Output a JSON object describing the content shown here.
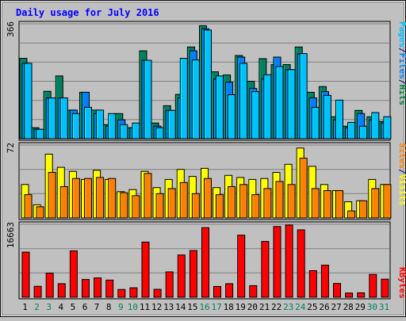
{
  "chart_data": {
    "type": "bar",
    "title": "Daily usage for July 2016",
    "categories": [
      "1",
      "2",
      "3",
      "4",
      "5",
      "6",
      "7",
      "8",
      "9",
      "10",
      "11",
      "12",
      "13",
      "14",
      "15",
      "16",
      "17",
      "18",
      "19",
      "20",
      "21",
      "22",
      "23",
      "24",
      "25",
      "26",
      "27",
      "28",
      "29",
      "30",
      "31"
    ],
    "weekend_days": [
      "2",
      "3",
      "9",
      "10",
      "16",
      "17",
      "23",
      "24",
      "30",
      "31"
    ],
    "panels": [
      {
        "id": "top",
        "ymax_label": "366",
        "ymax": 366,
        "legend": [
          {
            "text": "Pages",
            "color": "#00c0ff"
          },
          {
            "text": "/",
            "color": "#000080"
          },
          {
            "text": "Files",
            "color": "#0080ff"
          },
          {
            "text": "/",
            "color": "#000080"
          },
          {
            "text": "Hits",
            "color": "#008040"
          }
        ],
        "series": [
          {
            "name": "Hits",
            "color": "#008060",
            "values": [
              256,
              35,
              151,
              200,
              91,
              148,
              91,
              45,
              80,
              35,
              280,
              50,
              105,
              141,
              292,
              360,
              213,
              203,
              265,
              183,
              255,
              236,
              236,
              292,
              148,
              166,
              70,
              40,
              90,
              70,
              55
            ]
          },
          {
            "name": "Files",
            "color": "#0080ff",
            "values": [
              240,
              30,
              130,
              130,
              91,
              148,
              80,
              40,
              60,
              35,
              250,
              40,
              90,
              130,
              280,
              350,
              190,
              180,
              260,
              160,
              190,
              260,
              220,
              270,
              130,
              150,
              60,
              35,
              80,
              60,
              50
            ]
          },
          {
            "name": "Pages",
            "color": "#00c0ff",
            "values": [
              240,
              30,
              130,
              130,
              80,
              100,
              91,
              80,
              45,
              50,
              250,
              35,
              90,
              256,
              251,
              346,
              200,
              140,
              240,
              150,
              204,
              230,
              220,
              271,
              100,
              138,
              123,
              52,
              40,
              83,
              70
            ]
          }
        ]
      },
      {
        "id": "middle",
        "ymax_label": "72",
        "ymax": 72,
        "legend": [
          {
            "text": "Sites",
            "color": "#ff8000"
          },
          {
            "text": "/",
            "color": "#000080"
          },
          {
            "text": "Visits",
            "color": "#ffff00"
          }
        ],
        "series": [
          {
            "name": "Visits",
            "color": "#ffff00",
            "values": [
              33,
              13,
              63,
              50,
              46,
              38,
              47,
              38,
              26,
              28,
              46,
              30,
              38,
              48,
              41,
              49,
              30,
              42,
              40,
              38,
              39,
              45,
              53,
              69,
              51,
              33,
              27,
              16,
              17,
              38,
              33
            ]
          },
          {
            "name": "Sites",
            "color": "#ff8000",
            "values": [
              23,
              11,
              45,
              31,
              39,
              39,
              40,
              39,
              25,
              22,
              44,
              24,
              29,
              35,
              24,
              39,
              23,
              31,
              33,
              23,
              29,
              36,
              33,
              59,
              29,
              27,
              27,
              7,
              17,
              29,
              33
            ]
          }
        ]
      },
      {
        "id": "bottom",
        "ymax_label": "16663",
        "ymax": 16663,
        "legend": [
          {
            "text": "KBytes",
            "color": "#ff0000"
          }
        ],
        "series": [
          {
            "name": "KBytes",
            "color": "#ff0000",
            "values": [
              10300,
              2500,
              5500,
              3100,
              10600,
              4050,
              4420,
              3920,
              1770,
              2150,
              12600,
              1810,
              5800,
              9660,
              10670,
              15900,
              2470,
              3100,
              14190,
              2650,
              12750,
              16160,
              16500,
              15400,
              6060,
              7330,
              3150,
              960,
              1020,
              5200,
              4130
            ]
          }
        ]
      }
    ]
  }
}
